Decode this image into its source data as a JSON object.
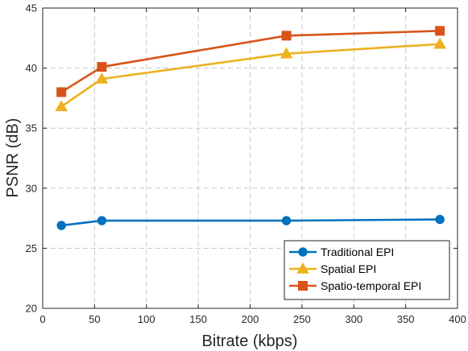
{
  "chart_data": {
    "type": "line",
    "xlabel": "Bitrate (kbps)",
    "ylabel": "PSNR (dB)",
    "xlim": [
      0,
      400
    ],
    "ylim": [
      20,
      45
    ],
    "xticks": [
      0,
      50,
      100,
      150,
      200,
      250,
      300,
      350,
      400
    ],
    "yticks": [
      20,
      25,
      30,
      35,
      40,
      45
    ],
    "grid": true,
    "legend_position": "bottom-right",
    "series": [
      {
        "name": "Traditional EPI",
        "color": "#0072BD",
        "marker": "circle",
        "x": [
          18,
          57,
          235,
          383
        ],
        "y": [
          26.9,
          27.3,
          27.3,
          27.4
        ]
      },
      {
        "name": "Spatial EPI",
        "color": "#EDB120",
        "marker": "triangle",
        "x": [
          18,
          57,
          235,
          383
        ],
        "y": [
          36.8,
          39.1,
          41.2,
          42.0
        ]
      },
      {
        "name": "Spatio-temporal EPI",
        "color": "#D95319",
        "marker": "square",
        "x": [
          18,
          57,
          235,
          383
        ],
        "y": [
          38.0,
          40.1,
          42.7,
          43.1
        ]
      }
    ]
  }
}
